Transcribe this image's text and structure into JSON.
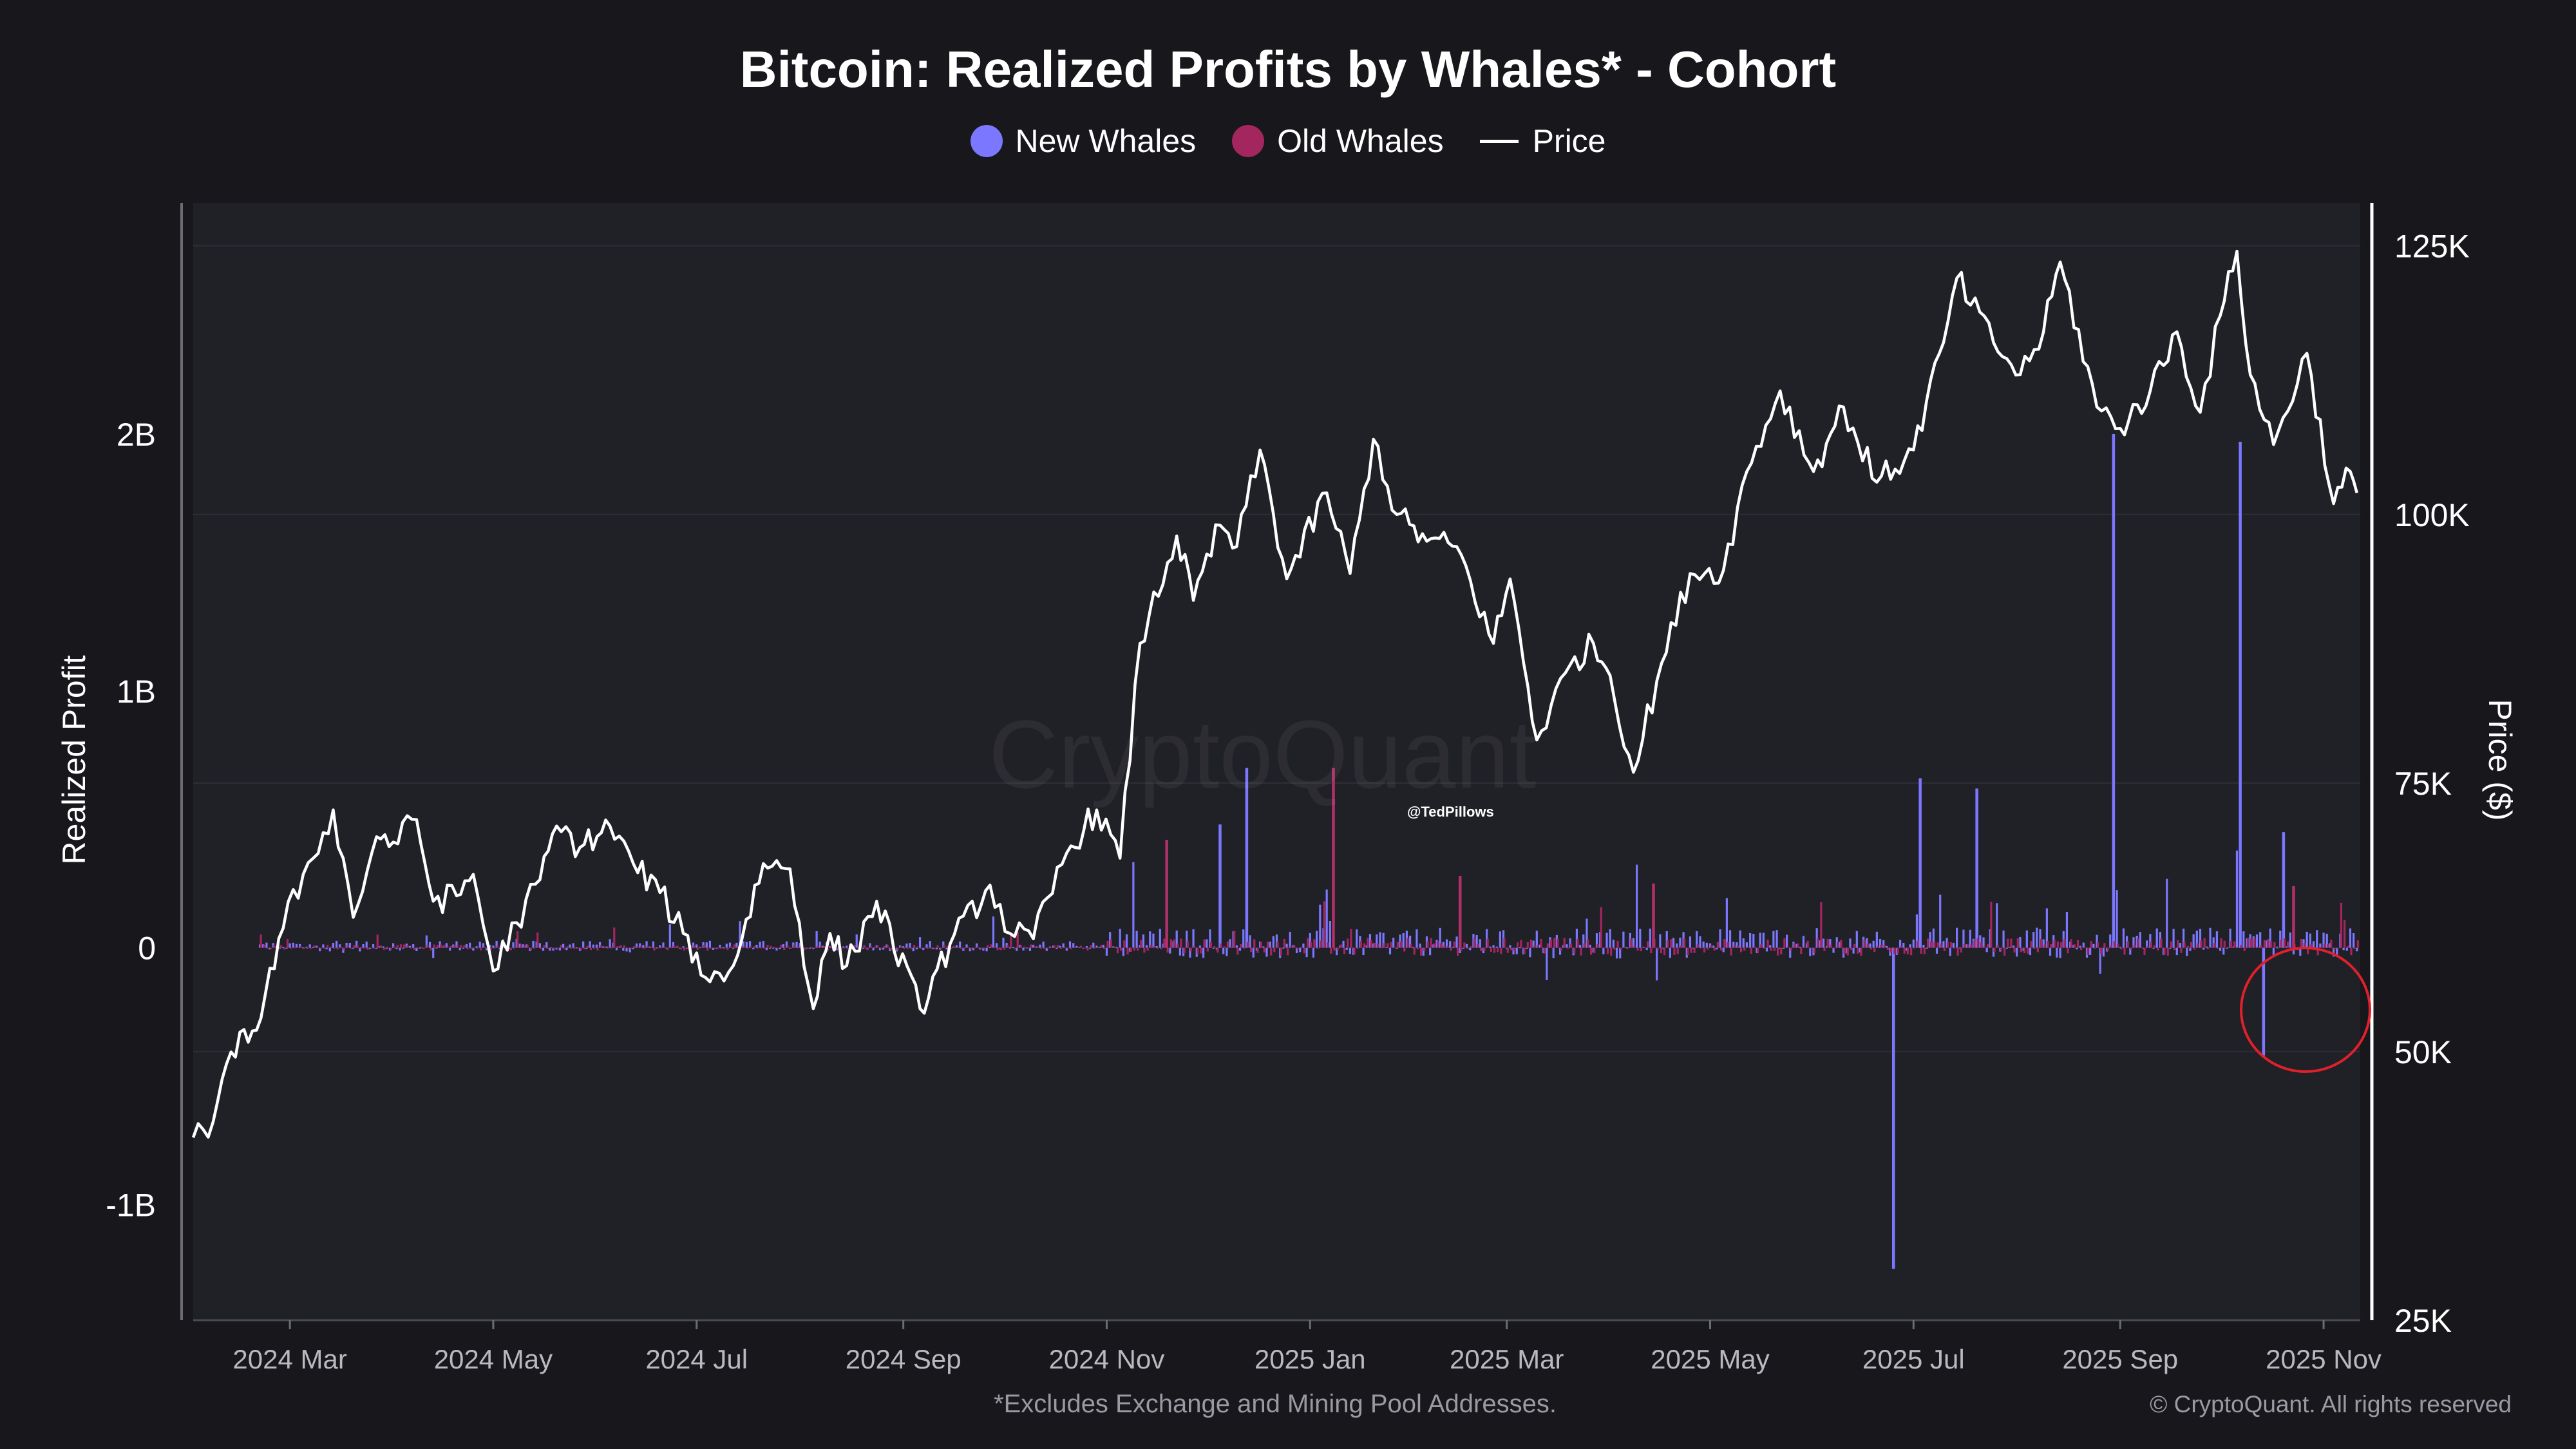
{
  "chart_data": {
    "type": "bar+line",
    "title": "Bitcoin: Realized Profits by Whales* - Cohort",
    "legend": [
      {
        "name": "New Whales",
        "color": "#7b78ff",
        "marker": "dot"
      },
      {
        "name": "Old Whales",
        "color": "#a3265f",
        "marker": "dot"
      },
      {
        "name": "Price",
        "color": "#ffffff",
        "marker": "line"
      }
    ],
    "ylabel_left": "Realized Profit",
    "ylabel_right": "Price ($)",
    "yleft_ticks": [
      "2B",
      "1B",
      "0",
      "-1B"
    ],
    "yleft_range": [
      -1450000000.0,
      2900000000.0
    ],
    "yright_ticks": [
      "125K",
      "100K",
      "75K",
      "50K",
      "25K"
    ],
    "yright_range": [
      25000,
      129000
    ],
    "x_range": [
      "2024-02-01",
      "2025-11-12"
    ],
    "x_ticks": [
      {
        "label": "2024 Mar",
        "date": "2024-03-01"
      },
      {
        "label": "2024 May",
        "date": "2024-05-01"
      },
      {
        "label": "2024 Jul",
        "date": "2024-07-01"
      },
      {
        "label": "2024 Sep",
        "date": "2024-09-01"
      },
      {
        "label": "2024 Nov",
        "date": "2024-11-01"
      },
      {
        "label": "2025 Jan",
        "date": "2025-01-01"
      },
      {
        "label": "2025 Mar",
        "date": "2025-03-01"
      },
      {
        "label": "2025 May",
        "date": "2025-05-01"
      },
      {
        "label": "2025 Jul",
        "date": "2025-07-01"
      },
      {
        "label": "2025 Sep",
        "date": "2025-09-01"
      },
      {
        "label": "2025 Nov",
        "date": "2025-11-01"
      }
    ],
    "price_series": [
      [
        "2024-02-01",
        42000
      ],
      [
        "2024-02-07",
        43500
      ],
      [
        "2024-02-15",
        51800
      ],
      [
        "2024-02-20",
        52000
      ],
      [
        "2024-02-28",
        61500
      ],
      [
        "2024-03-05",
        66500
      ],
      [
        "2024-03-08",
        68000
      ],
      [
        "2024-03-14",
        72500
      ],
      [
        "2024-03-20",
        62500
      ],
      [
        "2024-03-27",
        70000
      ],
      [
        "2024-04-01",
        69500
      ],
      [
        "2024-04-08",
        71600
      ],
      [
        "2024-04-13",
        64000
      ],
      [
        "2024-04-20",
        64500
      ],
      [
        "2024-04-25",
        66500
      ],
      [
        "2024-05-01",
        57500
      ],
      [
        "2024-05-08",
        62000
      ],
      [
        "2024-05-15",
        66000
      ],
      [
        "2024-05-20",
        71000
      ],
      [
        "2024-05-27",
        69000
      ],
      [
        "2024-06-05",
        71000
      ],
      [
        "2024-06-12",
        67500
      ],
      [
        "2024-06-20",
        64800
      ],
      [
        "2024-06-27",
        61000
      ],
      [
        "2024-07-05",
        56500
      ],
      [
        "2024-07-12",
        58000
      ],
      [
        "2024-07-21",
        67500
      ],
      [
        "2024-07-29",
        67000
      ],
      [
        "2024-08-05",
        54000
      ],
      [
        "2024-08-10",
        61000
      ],
      [
        "2024-08-15",
        58000
      ],
      [
        "2024-08-24",
        64000
      ],
      [
        "2024-09-06",
        54000
      ],
      [
        "2024-09-15",
        60000
      ],
      [
        "2024-09-27",
        65500
      ],
      [
        "2024-10-03",
        61000
      ],
      [
        "2024-10-10",
        60500
      ],
      [
        "2024-10-20",
        68500
      ],
      [
        "2024-10-29",
        72500
      ],
      [
        "2024-11-05",
        68000
      ],
      [
        "2024-11-11",
        88000
      ],
      [
        "2024-11-22",
        98000
      ],
      [
        "2024-11-27",
        92000
      ],
      [
        "2024-12-05",
        99000
      ],
      [
        "2024-12-10",
        97000
      ],
      [
        "2024-12-17",
        106000
      ],
      [
        "2024-12-25",
        94000
      ],
      [
        "2025-01-06",
        102000
      ],
      [
        "2025-01-13",
        94500
      ],
      [
        "2025-01-20",
        107000
      ],
      [
        "2025-01-27",
        100000
      ],
      [
        "2025-02-05",
        97500
      ],
      [
        "2025-02-14",
        97000
      ],
      [
        "2025-02-25",
        88000
      ],
      [
        "2025-03-02",
        94000
      ],
      [
        "2025-03-10",
        79000
      ],
      [
        "2025-03-20",
        86000
      ],
      [
        "2025-03-27",
        88000
      ],
      [
        "2025-04-01",
        85000
      ],
      [
        "2025-04-08",
        76000
      ],
      [
        "2025-04-15",
        84500
      ],
      [
        "2025-04-25",
        94500
      ],
      [
        "2025-05-05",
        94800
      ],
      [
        "2025-05-12",
        104000
      ],
      [
        "2025-05-22",
        111500
      ],
      [
        "2025-06-01",
        104000
      ],
      [
        "2025-06-10",
        110000
      ],
      [
        "2025-06-20",
        103000
      ],
      [
        "2025-07-01",
        106000
      ],
      [
        "2025-07-10",
        116000
      ],
      [
        "2025-07-14",
        122000
      ],
      [
        "2025-07-25",
        116000
      ],
      [
        "2025-08-02",
        113000
      ],
      [
        "2025-08-09",
        117000
      ],
      [
        "2025-08-14",
        123500
      ],
      [
        "2025-08-25",
        110000
      ],
      [
        "2025-09-01",
        108000
      ],
      [
        "2025-09-10",
        111500
      ],
      [
        "2025-09-18",
        117000
      ],
      [
        "2025-09-25",
        109500
      ],
      [
        "2025-10-01",
        118500
      ],
      [
        "2025-10-06",
        124500
      ],
      [
        "2025-10-10",
        113000
      ],
      [
        "2025-10-17",
        106500
      ],
      [
        "2025-10-27",
        115000
      ],
      [
        "2025-11-04",
        101000
      ],
      [
        "2025-11-09",
        104000
      ],
      [
        "2025-11-11",
        102000
      ]
    ],
    "new_whales_spikes": [
      [
        "2025-08-30",
        2000000000.0
      ],
      [
        "2025-10-07",
        1970000000.0
      ],
      [
        "2025-06-25",
        -1250000000.0
      ],
      [
        "2025-07-03",
        660000000.0
      ],
      [
        "2025-07-20",
        620000000.0
      ],
      [
        "2024-12-13",
        700000000.0
      ],
      [
        "2024-12-05",
        480000000.0
      ],
      [
        "2025-10-14",
        -420000000.0
      ],
      [
        "2025-10-20",
        450000000.0
      ]
    ],
    "old_whales_spikes": [
      [
        "2025-01-08",
        700000000.0
      ],
      [
        "2024-11-19",
        420000000.0
      ],
      [
        "2025-02-15",
        280000000.0
      ],
      [
        "2025-04-14",
        250000000.0
      ],
      [
        "2025-10-23",
        240000000.0
      ]
    ],
    "annotations": [
      "red circle highlighting recent New Whales losses (late Oct – early Nov 2025)"
    ]
  },
  "watermark": "CryptoQuant",
  "tag": "@TedPillows",
  "footnote": "*Excludes Exchange and Mining Pool Addresses.",
  "copyright": "© CryptoQuant. All rights reserved"
}
